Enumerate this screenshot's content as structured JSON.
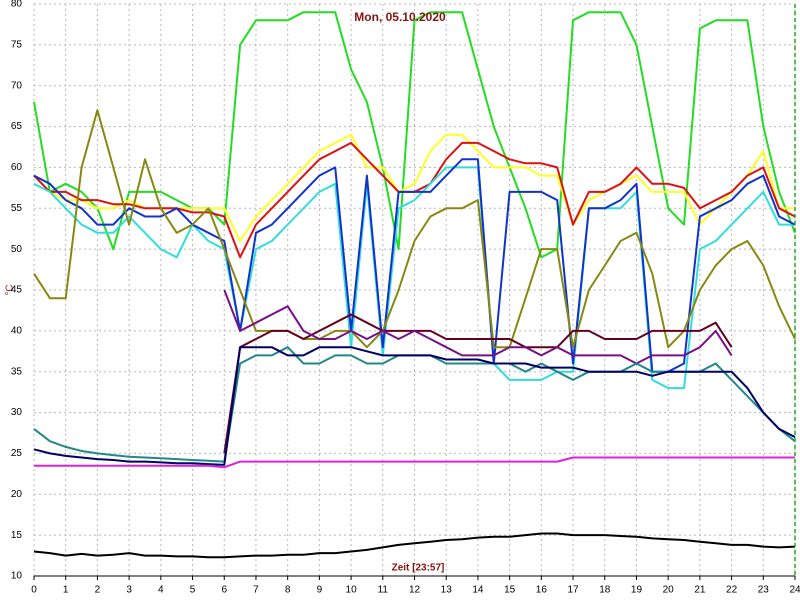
{
  "chart_data": {
    "type": "line",
    "title": "Mon, 05.10.2020",
    "x_label": "Zeit [23:57]",
    "y_label": "°C",
    "x": [
      0,
      0.5,
      1,
      1.5,
      2,
      2.5,
      3,
      3.5,
      4,
      4.5,
      5,
      5.5,
      6,
      6.5,
      7,
      7.5,
      8,
      8.5,
      9,
      9.5,
      10,
      10.5,
      11,
      11.5,
      12,
      12.5,
      13,
      13.5,
      14,
      14.5,
      15,
      15.5,
      16,
      16.5,
      17,
      17.5,
      18,
      18.5,
      19,
      19.5,
      20,
      20.5,
      21,
      21.5,
      22,
      22.5,
      23,
      23.5,
      24
    ],
    "xlim": [
      0,
      24
    ],
    "xticks": [
      0,
      1,
      2,
      3,
      4,
      5,
      6,
      7,
      8,
      9,
      10,
      11,
      12,
      13,
      14,
      15,
      16,
      17,
      18,
      19,
      20,
      21,
      22,
      23,
      24
    ],
    "ylim": [
      10,
      80
    ],
    "yticks": [
      10,
      15,
      20,
      25,
      30,
      35,
      40,
      45,
      50,
      55,
      60,
      65,
      70,
      75,
      80
    ],
    "grid": true,
    "series": [
      {
        "color": "#22dd22",
        "values": [
          68,
          57,
          58,
          57,
          55,
          50,
          57,
          57,
          57,
          56,
          55,
          55,
          53,
          75,
          78,
          78,
          78,
          79,
          79,
          79,
          72,
          68,
          60,
          50,
          78,
          79,
          79,
          79,
          72,
          65,
          60,
          55,
          49,
          50,
          78,
          79,
          79,
          79,
          75,
          65,
          55,
          53,
          77,
          78,
          78,
          78,
          65,
          57,
          52
        ]
      },
      {
        "color": "#ffff22",
        "values": [
          59,
          57,
          56,
          56,
          55,
          55,
          56,
          55,
          55,
          55,
          55,
          55,
          55,
          51,
          54,
          56,
          58,
          60,
          62,
          63,
          64,
          60,
          60,
          57,
          58,
          62,
          64,
          64,
          62,
          60,
          60,
          60,
          59,
          59,
          53,
          56,
          57,
          58,
          59,
          57,
          57,
          57,
          53,
          55,
          57,
          59,
          62,
          55,
          55
        ]
      },
      {
        "color": "#dd1111",
        "values": [
          59,
          57,
          57,
          56,
          56,
          55.5,
          55.5,
          55,
          55,
          55,
          54.5,
          54.5,
          54,
          49,
          53,
          55,
          57,
          59,
          61,
          62,
          63,
          61,
          59,
          57,
          57,
          58,
          61,
          63,
          63,
          62,
          61,
          60.5,
          60.5,
          60,
          53,
          57,
          57,
          58,
          60,
          58,
          58,
          57.5,
          55,
          56,
          57,
          59,
          60,
          55,
          54
        ]
      },
      {
        "color": "#33dddd",
        "values": [
          58,
          57,
          55,
          53,
          52,
          52,
          54,
          52,
          50,
          49,
          53,
          51,
          50,
          40,
          50,
          51,
          53,
          55,
          57,
          58,
          38,
          58,
          37,
          55,
          56,
          58,
          60,
          60,
          60,
          36,
          34,
          34,
          34,
          35,
          35,
          55,
          55,
          55,
          57,
          34,
          33,
          33,
          50,
          51,
          53,
          55,
          57,
          53,
          53
        ]
      },
      {
        "color": "#1133cc",
        "values": [
          59,
          58,
          56,
          55,
          53,
          53,
          55,
          54,
          54,
          55,
          53,
          52,
          51,
          40,
          52,
          53,
          55,
          57,
          59,
          60,
          40,
          59,
          38,
          57,
          57,
          57,
          59,
          61,
          61,
          36,
          57,
          57,
          57,
          56,
          36,
          55,
          55,
          56,
          58,
          35,
          35,
          36,
          54,
          55,
          56,
          58,
          59,
          54,
          53
        ]
      },
      {
        "color": "#888811",
        "values": [
          47,
          44,
          44,
          60,
          67,
          60,
          53,
          61,
          55,
          52,
          53,
          55,
          50,
          45,
          40,
          40,
          40,
          39,
          39,
          40,
          40,
          38,
          40,
          45,
          51,
          54,
          55,
          55,
          56,
          38,
          38,
          44,
          50,
          50,
          38,
          45,
          48,
          51,
          52,
          47,
          38,
          40,
          45,
          48,
          50,
          51,
          48,
          43,
          39
        ]
      },
      {
        "color": "#660022",
        "values": [
          null,
          null,
          null,
          null,
          null,
          null,
          null,
          null,
          null,
          null,
          null,
          null,
          25,
          38,
          39,
          40,
          40,
          39,
          40,
          41,
          42,
          41,
          40,
          40,
          40,
          40,
          39,
          39,
          39,
          39,
          39,
          38,
          38,
          38,
          40,
          40,
          39,
          39,
          39,
          40,
          40,
          40,
          40,
          41,
          38,
          null,
          null,
          null,
          null
        ]
      },
      {
        "color": "#771188",
        "values": [
          null,
          null,
          null,
          null,
          null,
          null,
          null,
          null,
          null,
          null,
          null,
          null,
          45,
          40,
          41,
          42,
          43,
          40,
          39,
          39,
          40,
          39,
          40,
          39,
          40,
          39,
          38,
          37,
          37,
          37,
          38,
          38,
          37,
          38,
          37,
          37,
          37,
          37,
          36,
          37,
          37,
          37,
          38,
          40,
          37,
          null,
          null,
          null,
          null
        ]
      },
      {
        "color": "#228888",
        "values": [
          28,
          26.5,
          25.8,
          25.3,
          25,
          24.8,
          24.6,
          24.5,
          24.4,
          24.3,
          24.2,
          24.1,
          24,
          36,
          37,
          37,
          38,
          36,
          36,
          37,
          37,
          36,
          36,
          37,
          37,
          37,
          36,
          36,
          36,
          36,
          36,
          35,
          36,
          35,
          34,
          35,
          35,
          35,
          36,
          35,
          35,
          35,
          35,
          36,
          34,
          32,
          30,
          28,
          26.5
        ]
      },
      {
        "color": "#000066",
        "values": [
          25.5,
          25,
          24.7,
          24.5,
          24.3,
          24.2,
          24,
          24,
          23.9,
          23.8,
          23.8,
          23.7,
          23.6,
          38,
          38,
          38,
          37,
          37,
          38,
          38,
          38,
          37.5,
          37,
          37,
          37,
          37,
          36.5,
          36.5,
          36.5,
          36,
          36,
          36,
          35.5,
          35.5,
          35.5,
          35,
          35,
          35,
          35,
          34.5,
          35,
          35,
          35,
          35,
          35,
          33,
          30,
          28,
          27
        ]
      },
      {
        "color": "#dd22dd",
        "values": [
          23.5,
          23.5,
          23.5,
          23.5,
          23.5,
          23.5,
          23.5,
          23.5,
          23.5,
          23.5,
          23.5,
          23.5,
          23.3,
          24,
          24,
          24,
          24,
          24,
          24,
          24,
          24,
          24,
          24,
          24,
          24,
          24,
          24,
          24,
          24,
          24,
          24,
          24,
          24,
          24,
          24.5,
          24.5,
          24.5,
          24.5,
          24.5,
          24.5,
          24.5,
          24.5,
          24.5,
          24.5,
          24.5,
          24.5,
          24.5,
          24.5,
          24.5
        ]
      },
      {
        "color": "#000000",
        "values": [
          13,
          12.8,
          12.5,
          12.7,
          12.5,
          12.6,
          12.8,
          12.5,
          12.5,
          12.4,
          12.4,
          12.3,
          12.3,
          12.4,
          12.5,
          12.5,
          12.6,
          12.6,
          12.8,
          12.8,
          13,
          13.2,
          13.5,
          13.8,
          14,
          14.2,
          14.4,
          14.5,
          14.7,
          14.8,
          14.8,
          15,
          15.2,
          15.2,
          15,
          15,
          15,
          14.9,
          14.8,
          14.6,
          14.5,
          14.4,
          14.2,
          14,
          13.8,
          13.8,
          13.6,
          13.5,
          13.6
        ]
      }
    ]
  }
}
